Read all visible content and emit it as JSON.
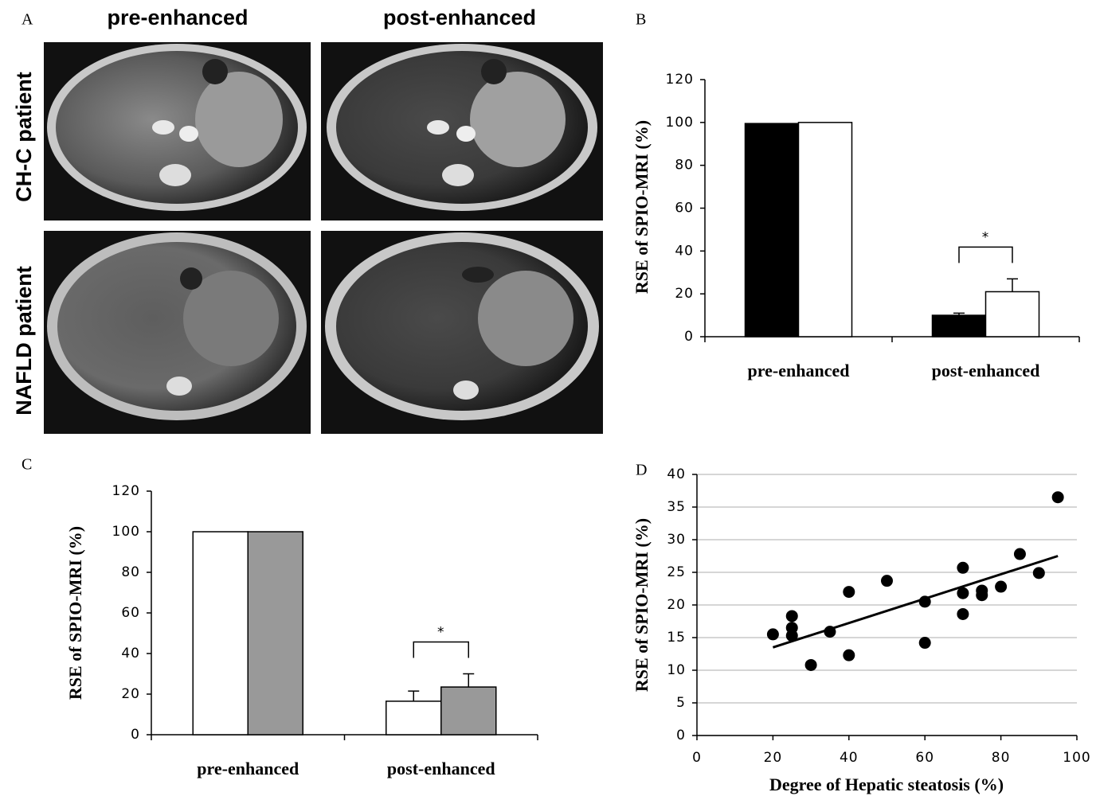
{
  "panel_a": {
    "label": "A",
    "columns": [
      "pre-enhanced",
      "post-enhanced"
    ],
    "rows": [
      "CH-C patient",
      "NAFLD patient"
    ]
  },
  "chart_data": [
    {
      "type": "bar",
      "label": "B",
      "y_label": "RSE of SPIO-MRI (%)",
      "categories": [
        "pre-enhanced",
        "post-enhanced"
      ],
      "series": [
        {
          "color": "#000000",
          "values": [
            99.5,
            10
          ],
          "errors": [
            null,
            1
          ]
        },
        {
          "color": "#ffffff",
          "values": [
            100,
            21
          ],
          "errors": [
            null,
            6
          ]
        }
      ],
      "annotation": "*",
      "ylim": [
        0,
        120
      ],
      "yticks": [
        0,
        20,
        40,
        60,
        80,
        100,
        120
      ]
    },
    {
      "type": "bar",
      "label": "C",
      "y_label": "RSE of SPIO-MRI (%)",
      "categories": [
        "pre-enhanced",
        "post-enhanced"
      ],
      "series": [
        {
          "color": "#ffffff",
          "values": [
            100,
            16.5
          ],
          "errors": [
            null,
            5
          ]
        },
        {
          "color": "#999999",
          "values": [
            100,
            23.5
          ],
          "errors": [
            null,
            6.5
          ]
        }
      ],
      "annotation": "*",
      "ylim": [
        0,
        120
      ],
      "yticks": [
        0,
        20,
        40,
        60,
        80,
        100,
        120
      ]
    },
    {
      "type": "scatter",
      "label": "D",
      "x_label": "Degree of Hepatic steatosis (%)",
      "y_label": "RSE of SPIO-MRI (%)",
      "x": [
        20,
        25,
        25,
        25,
        30,
        35,
        40,
        40,
        50,
        60,
        60,
        70,
        70,
        70,
        75,
        75,
        80,
        85,
        90,
        95
      ],
      "series": [
        {
          "color": "#000000",
          "values": [
            15.5,
            18.3,
            16.5,
            15.3,
            10.8,
            15.9,
            22,
            12.3,
            23.7,
            20.5,
            14.2,
            25.7,
            21.8,
            18.6,
            22.2,
            21.5,
            22.8,
            27.8,
            24.9,
            36.5
          ]
        }
      ],
      "trendline": {
        "x": [
          20,
          95
        ],
        "y": [
          13.5,
          27.5
        ]
      },
      "xlim": [
        0,
        100
      ],
      "xticks": [
        0,
        20,
        40,
        60,
        80,
        100
      ],
      "ylim": [
        0,
        40
      ],
      "yticks": [
        0,
        5,
        10,
        15,
        20,
        25,
        30,
        35,
        40
      ],
      "grid": true
    }
  ]
}
